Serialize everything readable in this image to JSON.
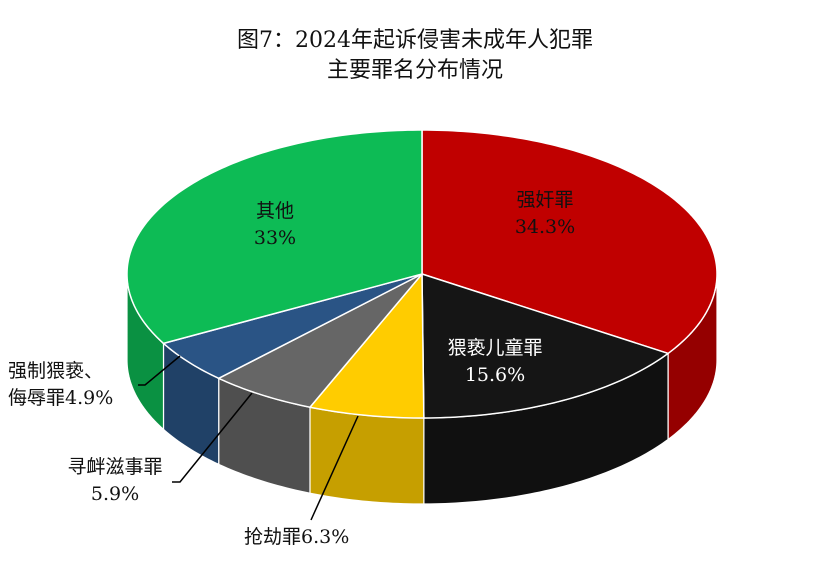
{
  "chart_data": {
    "type": "pie",
    "style": "3d",
    "title": "图7：2024年起诉侵害未成年人犯罪",
    "subtitle": "主要罪名分布情况",
    "start": "top",
    "direction": "clockwise",
    "slices": [
      {
        "name": "强奸罪",
        "value": 34.3,
        "label": "34.3%",
        "color": "#C00000"
      },
      {
        "name": "猥亵儿童罪",
        "value": 15.6,
        "label": "15.6%",
        "color": "#151515"
      },
      {
        "name": "抢劫罪",
        "value": 6.3,
        "label": "抢劫罪6.3%",
        "color": "#FFCC00"
      },
      {
        "name": "寻衅滋事罪",
        "value": 5.9,
        "label": "5.9%",
        "color": "#666666"
      },
      {
        "name": "强制猥亵、",
        "name2": "侮辱罪4.9%",
        "value": 4.9,
        "color": "#2A5485"
      },
      {
        "name": "其他",
        "value": 33,
        "label": "33%",
        "color": "#0DBB55"
      }
    ]
  }
}
